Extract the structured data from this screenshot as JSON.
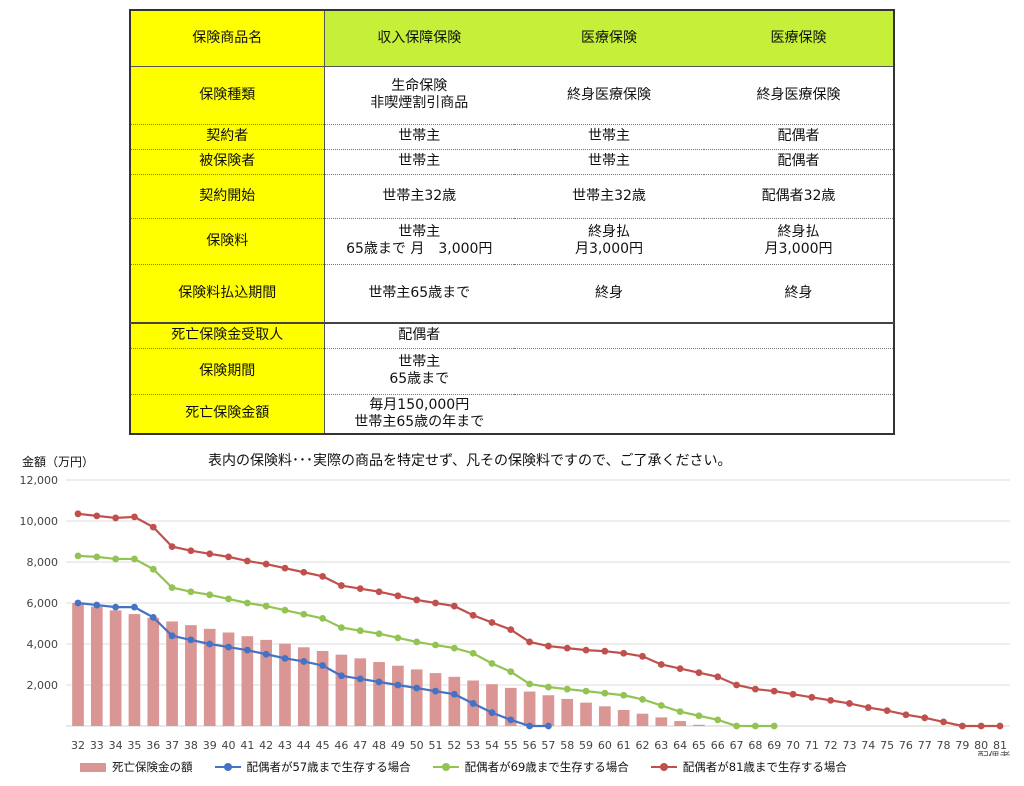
{
  "table": {
    "rows": [
      {
        "label": "保険商品名",
        "c1": "収入保障保険",
        "c2": "医療保険",
        "c3": "医療保険"
      },
      {
        "label": "保険種類",
        "c1": "生命保険\n非喫煙割引商品",
        "c2": "終身医療保険",
        "c3": "終身医療保険"
      },
      {
        "label": "契約者",
        "c1": "世帯主",
        "c2": "世帯主",
        "c3": "配偶者"
      },
      {
        "label": "被保険者",
        "c1": "世帯主",
        "c2": "世帯主",
        "c3": "配偶者"
      },
      {
        "label": "契約開始",
        "c1": "世帯主32歳",
        "c2": "世帯主32歳",
        "c3": "配偶者32歳"
      },
      {
        "label": "保険料",
        "c1": "世帯主\n65歳まで 月　3,000円",
        "c2": "終身払\n月3,000円",
        "c3": "終身払\n月3,000円"
      },
      {
        "label": "保険料払込期間",
        "c1": "世帯主65歳まで",
        "c2": "終身",
        "c3": "終身"
      },
      {
        "label": "死亡保険金受取人",
        "c1": "配偶者",
        "c2": "",
        "c3": ""
      },
      {
        "label": "保険期間",
        "c1": "世帯主\n65歳まで",
        "c2": "",
        "c3": ""
      },
      {
        "label": "死亡保険金額",
        "c1": "毎月150,000円\n世帯主65歳の年まで",
        "c2": "",
        "c3": ""
      }
    ]
  },
  "note": "表内の保険料･･･実際の商品を特定せず、凡その保険料ですので、ご了承ください。",
  "chart_data": {
    "type": "bar",
    "ylabel": "金額（万円）",
    "xlabel": "配偶者\n年齢",
    "ylim": [
      0,
      12000
    ],
    "yticks": [
      2000,
      4000,
      6000,
      8000,
      10000,
      12000
    ],
    "ytick_labels": [
      "2,000",
      "4,000",
      "6,000",
      "8,000",
      "10,000",
      "12,000"
    ],
    "grid": true,
    "legend": "bottom",
    "categories": [
      "32",
      "33",
      "34",
      "35",
      "36",
      "37",
      "38",
      "39",
      "40",
      "41",
      "42",
      "43",
      "44",
      "45",
      "46",
      "47",
      "48",
      "49",
      "50",
      "51",
      "52",
      "53",
      "54",
      "55",
      "56",
      "57",
      "58",
      "59",
      "60",
      "61",
      "62",
      "63",
      "64",
      "65",
      "66",
      "67",
      "68",
      "69",
      "70",
      "71",
      "72",
      "73",
      "74",
      "75",
      "76",
      "77",
      "78",
      "79",
      "80",
      "81"
    ],
    "series": [
      {
        "name": "死亡保険金の額",
        "kind": "bar",
        "color": "#d99694",
        "values": [
          6000,
          5820,
          5640,
          5460,
          5280,
          5100,
          4920,
          4740,
          4560,
          4380,
          4200,
          4020,
          3840,
          3660,
          3480,
          3300,
          3120,
          2940,
          2760,
          2580,
          2400,
          2220,
          2040,
          1860,
          1680,
          1500,
          1320,
          1140,
          960,
          780,
          600,
          420,
          240,
          60,
          null,
          null,
          null,
          null,
          null,
          null,
          null,
          null,
          null,
          null,
          null,
          null,
          null,
          null,
          null,
          null
        ]
      },
      {
        "name": "配偶者が57歳まで生存する場合",
        "kind": "line",
        "color": "#4472c4",
        "values": [
          6000,
          5900,
          5800,
          5800,
          5300,
          4400,
          4200,
          4000,
          3850,
          3700,
          3500,
          3300,
          3150,
          2950,
          2450,
          2300,
          2150,
          2000,
          1850,
          1700,
          1550,
          1100,
          650,
          300,
          0,
          0,
          null,
          null,
          null,
          null,
          null,
          null,
          null,
          null,
          null,
          null,
          null,
          null,
          null,
          null,
          null,
          null,
          null,
          null,
          null,
          null,
          null,
          null,
          null,
          null
        ]
      },
      {
        "name": "配偶者が69歳まで生存する場合",
        "kind": "line",
        "color": "#92c353",
        "values": [
          8300,
          8250,
          8150,
          8150,
          7650,
          6750,
          6550,
          6400,
          6200,
          6000,
          5850,
          5650,
          5450,
          5250,
          4800,
          4650,
          4500,
          4300,
          4100,
          3950,
          3800,
          3550,
          3050,
          2650,
          2050,
          1900,
          1800,
          1700,
          1600,
          1500,
          1300,
          1000,
          700,
          500,
          300,
          0,
          0,
          0,
          null,
          null,
          null,
          null,
          null,
          null,
          null,
          null,
          null,
          null,
          null,
          null
        ]
      },
      {
        "name": "配偶者が81歳まで生存する場合",
        "kind": "line",
        "color": "#c0504d",
        "values": [
          10350,
          10250,
          10150,
          10200,
          9700,
          8750,
          8550,
          8400,
          8250,
          8050,
          7900,
          7700,
          7500,
          7300,
          6850,
          6700,
          6550,
          6350,
          6150,
          6000,
          5850,
          5400,
          5050,
          4700,
          4100,
          3900,
          3800,
          3700,
          3650,
          3550,
          3400,
          3000,
          2800,
          2600,
          2400,
          2000,
          1800,
          1700,
          1550,
          1400,
          1250,
          1100,
          900,
          750,
          550,
          400,
          200,
          0,
          0,
          0
        ]
      }
    ]
  }
}
